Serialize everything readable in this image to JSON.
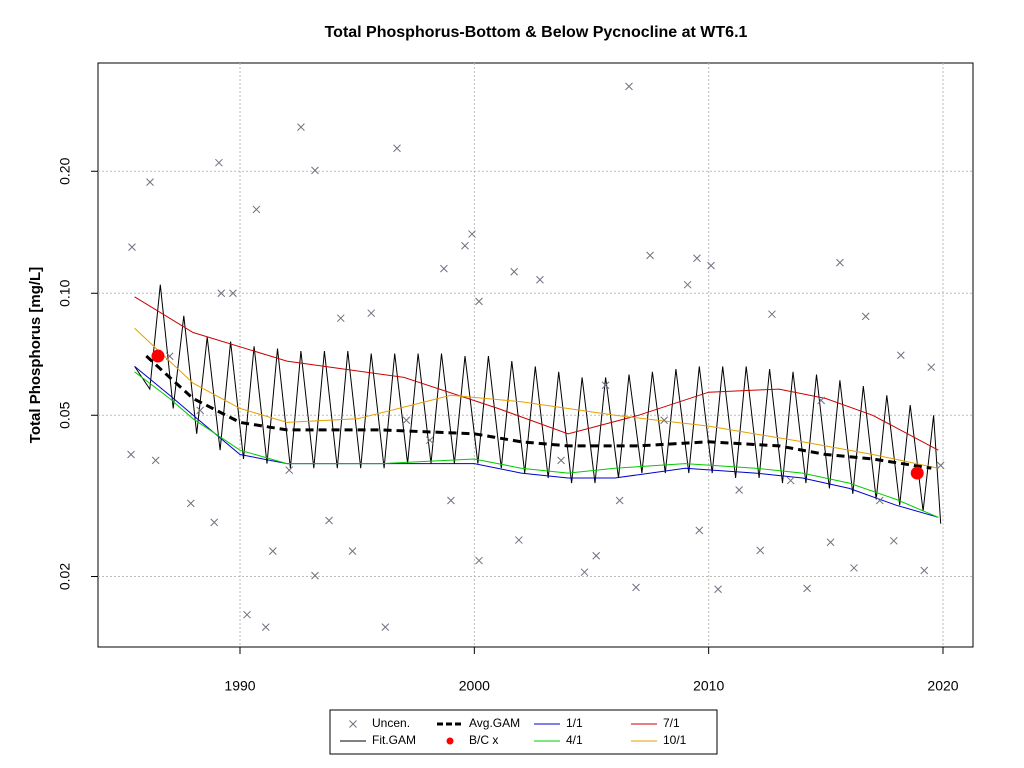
{
  "chart_data": {
    "type": "scatter",
    "title": "Total Phosphorus-Bottom & Below Pycnocline at WT6.1",
    "y_label": "Total Phosphorus [mg/L]",
    "y_log": true,
    "grid": true,
    "legend": "bottom",
    "xlim": [
      1983.94,
      2021.28
    ],
    "ylim": [
      0.0134,
      0.37
    ],
    "xticks": [
      1990,
      2000,
      2010,
      2020
    ],
    "yticks": [
      0.02,
      0.05,
      {
        "value": 0.1,
        "label": "0.10"
      },
      {
        "value": 0.2,
        "label": "0.20"
      }
    ],
    "series": [
      {
        "name": "Uncen.",
        "style": "x",
        "color": "#707080",
        "x": [
          1985.39,
          1986.16,
          1985.35,
          1989.1,
          1989.2,
          1989.7,
          1990.7,
          1990.3,
          1991.1,
          1992.6,
          1993.2,
          1993.2,
          1996.7,
          1996.2,
          1999.9,
          1999.6,
          1998.7,
          2000.2,
          2001.7,
          2002.8,
          2006.6,
          2006.9,
          2007.5,
          2009.5,
          2010.1,
          2009.1,
          2010.4,
          2014.2,
          2015.6,
          2016.7,
          2019.2,
          2019.5,
          2005.2,
          2004.7,
          1994.8,
          1991.4,
          1987.9,
          1988.9,
          1994.3,
          1995.6,
          1997.1,
          1998.1,
          2001.9,
          2005.6,
          2008.1,
          2012.2,
          2012.7,
          2015.2,
          2016.2,
          2017.9,
          2018.2,
          2019.9,
          1986.4,
          1987.0,
          1988.3,
          1992.1,
          1993.8,
          1999.0,
          2000.2,
          2003.7,
          2006.2,
          2009.6,
          2011.3,
          2013.5,
          2014.8,
          2017.3
        ],
        "values": [
          0.13,
          0.188,
          0.04,
          0.21,
          0.1,
          0.1,
          0.161,
          0.0161,
          0.015,
          0.257,
          0.201,
          0.0201,
          0.228,
          0.015,
          0.14,
          0.131,
          0.115,
          0.0955,
          0.113,
          0.108,
          0.324,
          0.0188,
          0.124,
          0.122,
          0.117,
          0.105,
          0.0186,
          0.0187,
          0.119,
          0.0877,
          0.0207,
          0.0657,
          0.0225,
          0.0205,
          0.0231,
          0.0231,
          0.0303,
          0.0272,
          0.0868,
          0.0893,
          0.0486,
          0.0434,
          0.0246,
          0.0593,
          0.0486,
          0.0232,
          0.0888,
          0.0243,
          0.021,
          0.0245,
          0.0703,
          0.0376,
          0.0387,
          0.0699,
          0.0514,
          0.0366,
          0.0275,
          0.0308,
          0.0219,
          0.0387,
          0.0308,
          0.026,
          0.0327,
          0.0345,
          0.0544,
          0.0308
        ]
      },
      {
        "name": "Fit.GAM",
        "style": "line",
        "color": "#000000",
        "width": 1,
        "x": [
          1985.5,
          1986.15,
          1986.6,
          1987.15,
          1987.6,
          1988.15,
          1988.6,
          1989.15,
          1989.6,
          1990.15,
          1990.6,
          1991.15,
          1991.6,
          1992.15,
          1992.6,
          1993.15,
          1993.6,
          1994.15,
          1994.6,
          1995.15,
          1995.6,
          1996.15,
          1996.6,
          1997.15,
          1997.6,
          1998.15,
          1998.6,
          1999.15,
          1999.6,
          2000.15,
          2000.6,
          2001.15,
          2001.6,
          2002.15,
          2002.6,
          2003.15,
          2003.6,
          2004.15,
          2004.6,
          2005.15,
          2005.6,
          2006.15,
          2006.6,
          2007.15,
          2007.6,
          2008.15,
          2008.6,
          2009.15,
          2009.6,
          2010.15,
          2010.6,
          2011.15,
          2011.6,
          2012.15,
          2012.6,
          2013.15,
          2013.6,
          2014.15,
          2014.6,
          2015.15,
          2015.6,
          2016.15,
          2016.6,
          2017.15,
          2017.6,
          2018.15,
          2018.6,
          2019.15,
          2019.6,
          2019.9
        ],
        "values": [
          0.066,
          0.058,
          0.105,
          0.052,
          0.088,
          0.045,
          0.078,
          0.041,
          0.076,
          0.039,
          0.074,
          0.038,
          0.073,
          0.037,
          0.072,
          0.037,
          0.072,
          0.037,
          0.072,
          0.037,
          0.071,
          0.037,
          0.071,
          0.038,
          0.071,
          0.038,
          0.071,
          0.038,
          0.07,
          0.038,
          0.07,
          0.037,
          0.068,
          0.036,
          0.066,
          0.035,
          0.064,
          0.034,
          0.062,
          0.034,
          0.062,
          0.035,
          0.063,
          0.036,
          0.064,
          0.036,
          0.065,
          0.036,
          0.066,
          0.036,
          0.066,
          0.035,
          0.066,
          0.035,
          0.065,
          0.034,
          0.064,
          0.034,
          0.063,
          0.033,
          0.061,
          0.032,
          0.059,
          0.031,
          0.056,
          0.03,
          0.053,
          0.029,
          0.05,
          0.027
        ]
      },
      {
        "name": "Avg.GAM",
        "style": "dash",
        "color": "#000000",
        "width": 3,
        "x": [
          1986,
          1987,
          1988,
          1990,
          1992,
          1996,
          2000,
          2002,
          2004,
          2007,
          2010,
          2013,
          2015,
          2017,
          2019.5
        ],
        "values": [
          0.07,
          0.062,
          0.055,
          0.048,
          0.046,
          0.046,
          0.045,
          0.043,
          0.042,
          0.042,
          0.043,
          0.042,
          0.04,
          0.039,
          0.037
        ]
      },
      {
        "name": "B/C x",
        "style": "dot",
        "color": "#ff0000",
        "x": [
          1986.5,
          2018.9
        ],
        "values": [
          0.07,
          0.036
        ]
      },
      {
        "name": "1/1",
        "style": "line",
        "color": "#0000cc",
        "width": 1,
        "x": [
          1985.5,
          1987,
          1988,
          1990,
          1992,
          1996,
          2000,
          2002,
          2004,
          2006,
          2009,
          2012,
          2014,
          2016,
          2018,
          2019.8
        ],
        "values": [
          0.066,
          0.056,
          0.05,
          0.04,
          0.038,
          0.038,
          0.038,
          0.036,
          0.035,
          0.035,
          0.037,
          0.036,
          0.035,
          0.033,
          0.03,
          0.028
        ]
      },
      {
        "name": "4/1",
        "style": "line",
        "color": "#00cc00",
        "width": 1,
        "x": [
          1985.5,
          1987,
          1988,
          1990,
          1992,
          1996,
          2000,
          2002,
          2004,
          2006,
          2009,
          2012,
          2014,
          2016,
          2018,
          2019.8
        ],
        "values": [
          0.064,
          0.055,
          0.049,
          0.041,
          0.038,
          0.038,
          0.039,
          0.037,
          0.036,
          0.037,
          0.038,
          0.037,
          0.036,
          0.034,
          0.031,
          0.028
        ]
      },
      {
        "name": "7/1",
        "style": "line",
        "color": "#cc0000",
        "width": 1,
        "x": [
          1985.5,
          1988,
          1992,
          1997,
          2001,
          2004,
          2007,
          2010,
          2013,
          2015,
          2017,
          2019.8
        ],
        "values": [
          0.098,
          0.08,
          0.068,
          0.062,
          0.052,
          0.045,
          0.05,
          0.057,
          0.058,
          0.055,
          0.05,
          0.041
        ]
      },
      {
        "name": "10/1",
        "style": "line",
        "color": "#e69f00",
        "width": 1,
        "x": [
          1985.5,
          1988,
          1990,
          1992,
          1995,
          1999,
          2002,
          2006,
          2010,
          2014,
          2017,
          2019.8
        ],
        "values": [
          0.082,
          0.06,
          0.052,
          0.048,
          0.049,
          0.056,
          0.054,
          0.05,
          0.047,
          0.043,
          0.04,
          0.037
        ]
      }
    ]
  }
}
